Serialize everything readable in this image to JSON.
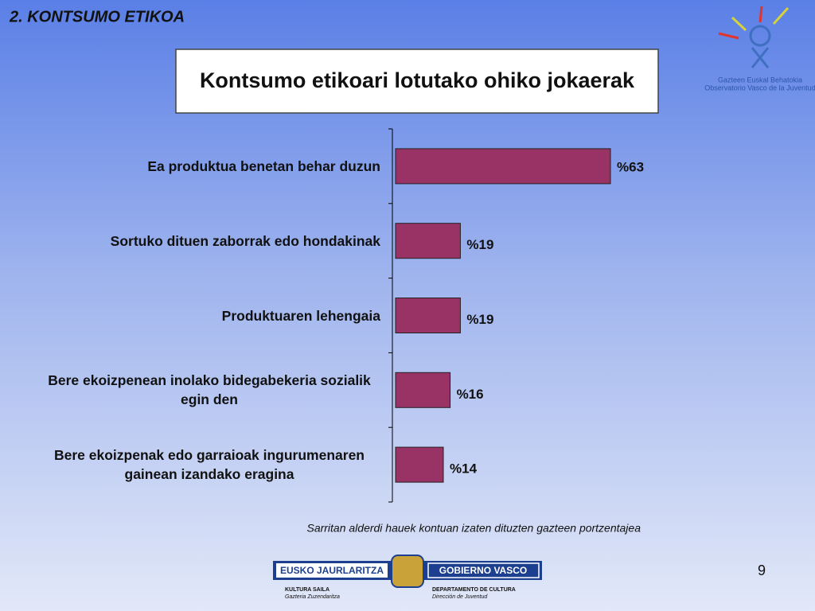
{
  "chart_data": {
    "type": "bar",
    "orientation": "horizontal",
    "title": "Kontsumo etikoari lotutako ohiko jokaerak",
    "categories": [
      "Ea produktua benetan behar duzun",
      "Sortuko dituen zaborrak edo hondakinak",
      "Produktuaren lehengaia",
      "Bere ekoizpenean inolako bidegabekeria sozialik egin den",
      "Bere ekoizpenak edo garraioak ingurumenaren gainean izandako eragina"
    ],
    "values": [
      63,
      19,
      19,
      16,
      14
    ],
    "value_labels": [
      "%63",
      "%19",
      "%19",
      "%16",
      "%14"
    ],
    "color": "#993366",
    "xlim": [
      0,
      70
    ],
    "note": "Sarritan alderdi hauek kontuan izaten dituzten gazteen portzentajea"
  },
  "slide": {
    "section": "2. KONTSUMO ETIKOA",
    "page": "9",
    "logo_top": [
      "Gazteen Euskal Behatokia",
      "Observatorio Vasco de la Juventud"
    ],
    "logo_bottom": {
      "left": "EUSKO JAURLARITZA",
      "right": "GOBIERNO VASCO",
      "left_sub": [
        "KULTURA SAILA",
        "Gazteria Zuzendaritza"
      ],
      "right_sub": [
        "DEPARTAMENTO DE CULTURA",
        "Dirección de Juventud"
      ]
    }
  }
}
